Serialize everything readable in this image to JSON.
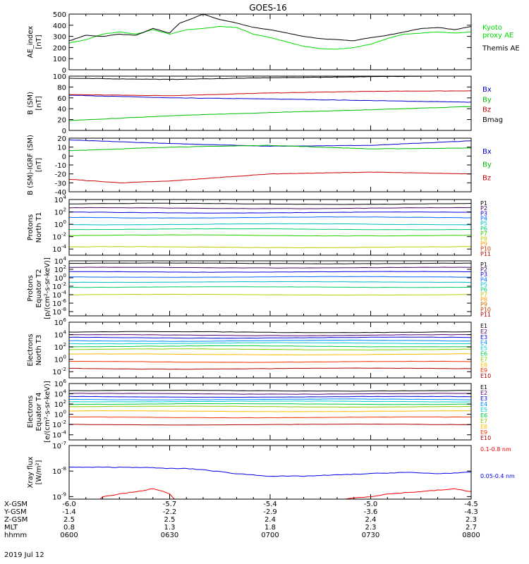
{
  "title": "GOES-16",
  "date_label": "2019 Jul 12",
  "footer": {
    "rows": [
      {
        "label": "X-GSM",
        "values": [
          "-6.0",
          "-5.7",
          "-5.4",
          "-5.0",
          "-4.5"
        ]
      },
      {
        "label": "Y-GSM",
        "values": [
          "-1.4",
          "-2.2",
          "-2.9",
          "-3.6",
          "-4.3"
        ]
      },
      {
        "label": "Z-GSM",
        "values": [
          "2.5",
          "2.5",
          "2.4",
          "2.4",
          "2.3"
        ]
      },
      {
        "label": "MLT",
        "values": [
          "0.8",
          "1.3",
          "1.8",
          "2.3",
          "2.7"
        ]
      },
      {
        "label": "hhmm",
        "values": [
          "0600",
          "0630",
          "0700",
          "0730",
          "0800"
        ]
      }
    ]
  },
  "chart_data": [
    {
      "type": "line",
      "ylabel_lines": [
        "AE_index",
        "[nT]"
      ],
      "ylim": [
        0,
        500
      ],
      "yticks": [
        0,
        100,
        200,
        300,
        400,
        500
      ],
      "series": [
        {
          "name": "Kyoto proxy AE",
          "label_lines": [
            "Kyoto",
            "proxy AE"
          ],
          "color": "#00dd00",
          "x": [
            0,
            5,
            10,
            15,
            20,
            25,
            30,
            35,
            40,
            45,
            50,
            55,
            60,
            65,
            70,
            75,
            80,
            85,
            90,
            95,
            100,
            105,
            110,
            115,
            120
          ],
          "y": [
            240,
            270,
            320,
            340,
            320,
            360,
            320,
            360,
            370,
            390,
            380,
            320,
            290,
            250,
            210,
            190,
            185,
            200,
            230,
            280,
            320,
            330,
            340,
            330,
            340
          ]
        },
        {
          "name": "Themis AE",
          "label_lines": [
            "Themis AE"
          ],
          "color": "#000000",
          "x": [
            0,
            5,
            10,
            15,
            20,
            25,
            30,
            33,
            35,
            40,
            45,
            50,
            55,
            60,
            65,
            70,
            75,
            80,
            85,
            90,
            95,
            100,
            105,
            110,
            115,
            120
          ],
          "y": [
            260,
            310,
            300,
            320,
            310,
            370,
            330,
            420,
            440,
            500,
            450,
            420,
            380,
            360,
            330,
            300,
            280,
            270,
            260,
            290,
            310,
            340,
            370,
            380,
            360,
            390
          ]
        }
      ]
    },
    {
      "type": "line",
      "ylabel_lines": [
        "B (SM)",
        "[nT]"
      ],
      "ylim": [
        0,
        100
      ],
      "yticks": [
        0,
        20,
        40,
        60,
        80,
        100
      ],
      "series": [
        {
          "name": "Bx",
          "label_lines": [
            "Bx"
          ],
          "color": "#0000cc",
          "x": [
            0,
            30,
            60,
            90,
            120
          ],
          "y": [
            65,
            60,
            58,
            55,
            52
          ]
        },
        {
          "name": "By",
          "label_lines": [
            "By"
          ],
          "color": "#00bb00",
          "x": [
            0,
            30,
            60,
            90,
            120
          ],
          "y": [
            18,
            27,
            33,
            38,
            44
          ]
        },
        {
          "name": "Bz",
          "label_lines": [
            "Bz"
          ],
          "color": "#cc0000",
          "x": [
            0,
            30,
            60,
            90,
            120
          ],
          "y": [
            66,
            64,
            69,
            72,
            73
          ]
        },
        {
          "name": "Bmag",
          "label_lines": [
            "Bmag"
          ],
          "color": "#000000",
          "x": [
            0,
            30,
            60,
            90,
            120
          ],
          "y": [
            96,
            94,
            97,
            99,
            101
          ]
        }
      ]
    },
    {
      "type": "line",
      "ylabel_lines": [
        "B (SM)-IGRF (SM)",
        "[nT]"
      ],
      "ylim": [
        -40,
        20
      ],
      "yticks": [
        -40,
        -30,
        -20,
        -10,
        0,
        10,
        20
      ],
      "series": [
        {
          "name": "Bx",
          "label_lines": [
            "Bx"
          ],
          "color": "#0000cc",
          "x": [
            0,
            30,
            60,
            90,
            120
          ],
          "y": [
            18,
            14,
            11,
            12,
            17
          ]
        },
        {
          "name": "By",
          "label_lines": [
            "By"
          ],
          "color": "#00bb00",
          "x": [
            0,
            30,
            60,
            90,
            120
          ],
          "y": [
            6,
            10,
            12,
            8,
            9
          ]
        },
        {
          "name": "Bz",
          "label_lines": [
            "Bz"
          ],
          "color": "#cc0000",
          "x": [
            0,
            15,
            30,
            60,
            90,
            120
          ],
          "y": [
            -26,
            -30,
            -28,
            -20,
            -18,
            -20
          ]
        }
      ]
    },
    {
      "type": "line",
      "log": true,
      "ylabel_lines": [
        "Protons",
        "North T1"
      ],
      "ylim_exp": [
        -5,
        4
      ],
      "ytick_exps": [
        -4,
        -2,
        0,
        2,
        4
      ],
      "series": [
        {
          "name": "P1",
          "color": "#000000",
          "exp": 3.3
        },
        {
          "name": "P2",
          "color": "#440066",
          "exp": 2.6
        },
        {
          "name": "P3",
          "color": "#0000dd",
          "exp": 1.9
        },
        {
          "name": "P4",
          "color": "#0066ff",
          "exp": 1.1
        },
        {
          "name": "P5",
          "color": "#00bbcc",
          "exp": 0.0
        },
        {
          "name": "P6",
          "color": "#00cc66",
          "exp": -0.8
        },
        {
          "name": "P7",
          "color": "#33cc00",
          "exp": -1.8
        },
        {
          "name": "P8",
          "color": "#bbcc00",
          "exp": -3.7
        },
        {
          "name": "P9",
          "color": "#ff9900",
          "exp": null
        },
        {
          "name": "P10",
          "color": "#cc3300",
          "exp": null
        },
        {
          "name": "P11",
          "color": "#bb0000",
          "exp": null
        }
      ]
    },
    {
      "type": "line",
      "log": true,
      "ylabel_lines": [
        "Protons",
        "Equator T2",
        "[p/(cm²-s-sr-keV)]"
      ],
      "ylim_exp": [
        -9,
        4
      ],
      "ytick_exps": [
        -8,
        -6,
        -4,
        -2,
        0,
        2,
        4
      ],
      "series": [
        {
          "name": "P1",
          "color": "#000000",
          "exp": 3.4
        },
        {
          "name": "P2",
          "color": "#440066",
          "exp": 2.4
        },
        {
          "name": "P3",
          "color": "#0000dd",
          "exp": 1.4
        },
        {
          "name": "P4",
          "color": "#0066ff",
          "exp": 0.2
        },
        {
          "name": "P5",
          "color": "#00bbcc",
          "exp": -1.0
        },
        {
          "name": "P6",
          "color": "#00cc66",
          "exp": -2.2
        },
        {
          "name": "P7",
          "color": "#bbcc00",
          "exp": -4.0
        },
        {
          "name": "P8",
          "color": "#ff9900",
          "exp": null
        },
        {
          "name": "P9",
          "color": "#cc6600",
          "exp": null
        },
        {
          "name": "P10",
          "color": "#cc3300",
          "exp": null
        },
        {
          "name": "P11",
          "color": "#bb0000",
          "exp": null
        }
      ]
    },
    {
      "type": "line",
      "log": true,
      "ylabel_lines": [
        "Electrons",
        "North T3"
      ],
      "ylim_exp": [
        -3,
        6
      ],
      "ytick_exps": [
        -2,
        0,
        2,
        4,
        6
      ],
      "series": [
        {
          "name": "E1",
          "color": "#000000",
          "exp": 4.4
        },
        {
          "name": "E2",
          "color": "#550077",
          "exp": 3.9
        },
        {
          "name": "E3",
          "color": "#0000dd",
          "exp": 3.5
        },
        {
          "name": "E4",
          "color": "#0088ff",
          "exp": 3.0
        },
        {
          "name": "E5",
          "color": "#00cccc",
          "exp": 2.6
        },
        {
          "name": "E6",
          "color": "#00cc44",
          "exp": 2.1
        },
        {
          "name": "E7",
          "color": "#88cc00",
          "exp": 1.6
        },
        {
          "name": "E8",
          "color": "#ffbb00",
          "exp": 0.8
        },
        {
          "name": "E9",
          "color": "#ee3300",
          "exp": -0.4
        },
        {
          "name": "E10",
          "color": "#aa0000",
          "exp": -1.5
        }
      ]
    },
    {
      "type": "line",
      "log": true,
      "ylabel_lines": [
        "Electrons",
        "Equator T4",
        "[e/(cm²-s-sr-keV)]"
      ],
      "ylim_exp": [
        -5,
        6
      ],
      "ytick_exps": [
        -4,
        -2,
        0,
        2,
        4,
        6
      ],
      "series": [
        {
          "name": "E1",
          "color": "#000000",
          "exp": 4.6
        },
        {
          "name": "E2",
          "color": "#550077",
          "exp": 4.0
        },
        {
          "name": "E3",
          "color": "#0000dd",
          "exp": 3.4
        },
        {
          "name": "E4",
          "color": "#0088ff",
          "exp": 2.9
        },
        {
          "name": "E5",
          "color": "#00cccc",
          "exp": 2.5
        },
        {
          "name": "E6",
          "color": "#00cc44",
          "exp": 2.0
        },
        {
          "name": "E7",
          "color": "#88cc00",
          "exp": 1.5
        },
        {
          "name": "E8",
          "color": "#ffbb00",
          "exp": 0.6
        },
        {
          "name": "E9",
          "color": "#ee3300",
          "exp": -0.6
        },
        {
          "name": "E10",
          "color": "#aa0000",
          "exp": -2.0
        }
      ]
    },
    {
      "type": "line",
      "log": true,
      "ylabel_lines": [
        "Xray flux",
        "[W/m²]"
      ],
      "ylim_exp": [
        -9.1,
        -7
      ],
      "ytick_exps": [
        -9,
        -8,
        -7
      ],
      "series": [
        {
          "name": "0.1-0.8 nm",
          "label_lines": [
            "0.1-0.8 nm"
          ],
          "color": "#ee0000",
          "x": [
            0,
            5,
            10,
            15,
            20,
            25,
            28,
            30,
            33,
            40,
            50,
            60,
            65,
            70,
            75,
            80,
            85,
            90,
            95,
            100,
            105,
            110,
            115,
            120
          ],
          "y": [
            -9.2,
            -9.6,
            -9.0,
            -8.9,
            -8.8,
            -8.7,
            -8.8,
            -8.9,
            -9.3,
            -9.6,
            -9.6,
            -9.6,
            -9.6,
            -9.4,
            -9.3,
            -9.15,
            -9.05,
            -9.0,
            -8.9,
            -8.85,
            -8.8,
            -8.75,
            -8.7,
            -8.8
          ]
        },
        {
          "name": "0.05-0.4 nm",
          "label_lines": [
            "0.05-0.4 nm"
          ],
          "color": "#0000ee",
          "x": [
            0,
            10,
            20,
            30,
            35,
            40,
            50,
            60,
            70,
            80,
            90,
            100,
            110,
            120
          ],
          "y": [
            -7.85,
            -7.85,
            -7.85,
            -7.9,
            -7.9,
            -7.95,
            -8.1,
            -8.2,
            -8.2,
            -8.15,
            -8.1,
            -8.05,
            -8.1,
            -8.05
          ]
        }
      ]
    }
  ]
}
